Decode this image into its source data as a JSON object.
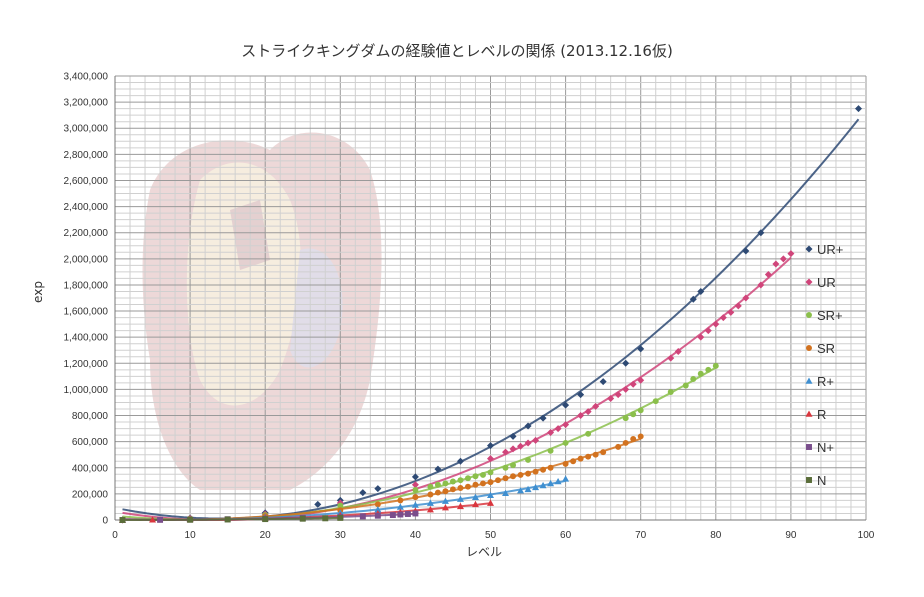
{
  "chart_data": {
    "type": "scatter",
    "title": "ストライクキングダムの経験値とレベルの関係 (2013.12.16仮)",
    "xlabel": "レベル",
    "ylabel": "exp",
    "xlim": [
      0,
      100
    ],
    "ylim": [
      0,
      3400000
    ],
    "xticks": [
      "0",
      "10",
      "20",
      "30",
      "40",
      "50",
      "60",
      "70",
      "80",
      "90",
      "100"
    ],
    "yticks": [
      "0",
      "200,000",
      "400,000",
      "600,000",
      "800,000",
      "1,000,000",
      "1,200,000",
      "1,400,000",
      "1,600,000",
      "1,800,000",
      "2,000,000",
      "2,200,000",
      "2,400,000",
      "2,600,000",
      "2,800,000",
      "3,000,000",
      "3,200,000",
      "3,400,000"
    ],
    "grid": true,
    "legend_position": "right",
    "trendlines": true,
    "series": [
      {
        "name": "UR+",
        "color": "#2e4a74",
        "marker": "diamond",
        "x": [
          1,
          10,
          20,
          27,
          30,
          33,
          35,
          40,
          43,
          46,
          50,
          53,
          55,
          57,
          60,
          62,
          65,
          68,
          70,
          77,
          78,
          84,
          86,
          99
        ],
        "y": [
          500,
          15000,
          55000,
          120000,
          150000,
          210000,
          240000,
          330000,
          390000,
          450000,
          570000,
          640000,
          720000,
          780000,
          880000,
          960000,
          1060000,
          1200000,
          1310000,
          1690000,
          1750000,
          2060000,
          2200000,
          3150000
        ]
      },
      {
        "name": "UR",
        "color": "#d0457a",
        "marker": "diamond",
        "x": [
          1,
          10,
          20,
          30,
          40,
          50,
          52,
          53,
          54,
          55,
          56,
          58,
          59,
          60,
          62,
          63,
          64,
          66,
          67,
          68,
          69,
          70,
          74,
          75,
          78,
          79,
          80,
          81,
          82,
          83,
          84,
          86,
          87,
          88,
          89,
          90
        ],
        "y": [
          400,
          12000,
          45000,
          130000,
          270000,
          470000,
          520000,
          545000,
          565000,
          590000,
          610000,
          670000,
          700000,
          730000,
          800000,
          830000,
          870000,
          930000,
          960000,
          1000000,
          1040000,
          1070000,
          1240000,
          1290000,
          1400000,
          1450000,
          1500000,
          1550000,
          1590000,
          1640000,
          1700000,
          1800000,
          1880000,
          1960000,
          2000000,
          2040000
        ]
      },
      {
        "name": "SR+",
        "color": "#8bbf4b",
        "marker": "circle",
        "x": [
          1,
          10,
          20,
          30,
          40,
          42,
          43,
          44,
          45,
          46,
          47,
          48,
          49,
          50,
          52,
          53,
          55,
          58,
          60,
          63,
          68,
          69,
          70,
          72,
          74,
          76,
          77,
          78,
          79,
          80
        ],
        "y": [
          300,
          10000,
          38000,
          110000,
          230000,
          255000,
          270000,
          280000,
          295000,
          305000,
          320000,
          335000,
          345000,
          365000,
          400000,
          420000,
          460000,
          530000,
          590000,
          660000,
          780000,
          810000,
          840000,
          910000,
          980000,
          1030000,
          1080000,
          1120000,
          1150000,
          1180000
        ]
      },
      {
        "name": "SR",
        "color": "#d2721f",
        "marker": "circle",
        "x": [
          1,
          10,
          20,
          30,
          35,
          38,
          40,
          42,
          43,
          44,
          45,
          46,
          47,
          48,
          49,
          50,
          51,
          52,
          53,
          54,
          55,
          56,
          57,
          58,
          60,
          61,
          62,
          63,
          64,
          65,
          67,
          68,
          69,
          70
        ],
        "y": [
          250,
          8000,
          30000,
          75000,
          120000,
          150000,
          175000,
          195000,
          210000,
          220000,
          235000,
          245000,
          255000,
          270000,
          280000,
          290000,
          305000,
          320000,
          335000,
          345000,
          355000,
          370000,
          385000,
          400000,
          430000,
          450000,
          470000,
          485000,
          500000,
          520000,
          560000,
          590000,
          620000,
          640000
        ]
      },
      {
        "name": "R+",
        "color": "#3f8fd0",
        "marker": "triangle",
        "x": [
          1,
          10,
          20,
          30,
          35,
          38,
          40,
          42,
          44,
          46,
          48,
          50,
          52,
          54,
          55,
          56,
          57,
          58,
          59,
          60
        ],
        "y": [
          200,
          6000,
          22000,
          55000,
          80000,
          100000,
          115000,
          130000,
          145000,
          160000,
          175000,
          190000,
          205000,
          225000,
          235000,
          250000,
          265000,
          280000,
          295000,
          315000
        ]
      },
      {
        "name": "R",
        "color": "#d9363e",
        "marker": "triangle",
        "x": [
          1,
          5,
          10,
          20,
          30,
          35,
          38,
          40,
          42,
          44,
          46,
          48,
          50
        ],
        "y": [
          150,
          2000,
          5000,
          15000,
          35000,
          50000,
          60000,
          70000,
          80000,
          95000,
          105000,
          120000,
          130000
        ]
      },
      {
        "name": "N+",
        "color": "#7a4e8c",
        "marker": "square",
        "x": [
          1,
          6,
          10,
          15,
          20,
          25,
          30,
          33,
          35,
          37,
          38,
          39,
          40
        ],
        "y": [
          100,
          1200,
          3000,
          6000,
          10000,
          15000,
          22000,
          28000,
          33000,
          38000,
          42000,
          46000,
          50000
        ]
      },
      {
        "name": "N",
        "color": "#5b6e3a",
        "marker": "square",
        "x": [
          1,
          10,
          15,
          20,
          25,
          28,
          30
        ],
        "y": [
          50,
          2000,
          4000,
          7000,
          10000,
          13000,
          16000
        ]
      }
    ]
  }
}
